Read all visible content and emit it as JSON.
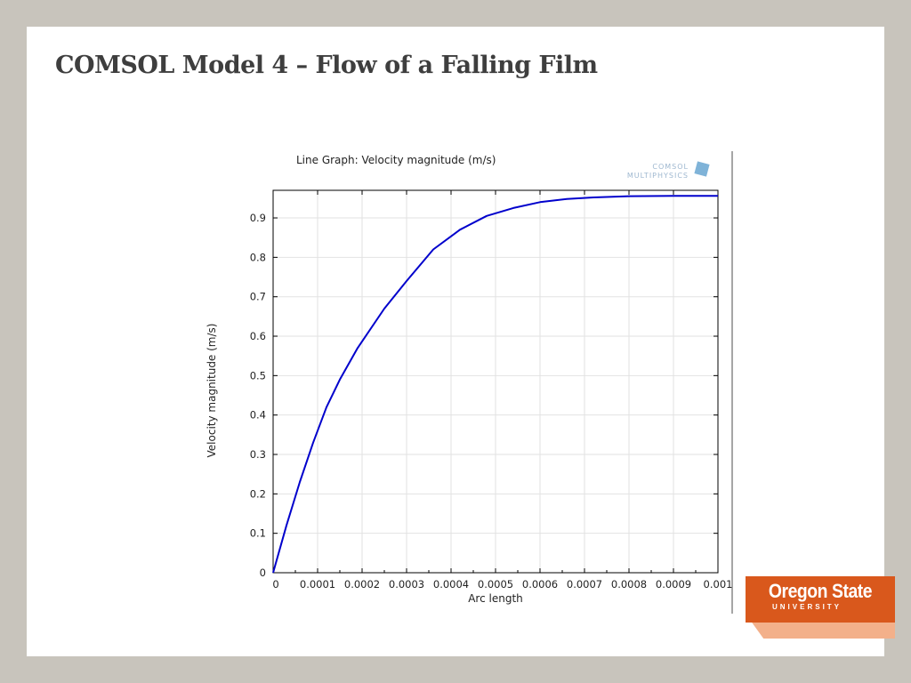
{
  "slide": {
    "title": "COMSOL Model 4 – Flow of a Falling Film"
  },
  "chart_data": {
    "type": "line",
    "title": "Line Graph: Velocity magnitude (m/s)",
    "xlabel": "Arc length",
    "ylabel": "Velocity magnitude (m/s)",
    "xlim": [
      0,
      0.001
    ],
    "ylim": [
      0,
      0.97
    ],
    "grid": true,
    "xticks": [
      0,
      0.0001,
      0.0002,
      0.0003,
      0.0004,
      0.0005,
      0.0006,
      0.0007,
      0.0008,
      0.0009,
      0.001
    ],
    "xtick_labels": [
      "0",
      "0.0001",
      "0.0002",
      "0.0003",
      "0.0004",
      "0.0005",
      "0.0006",
      "0.0007",
      "0.0008",
      "0.0009",
      "0.001"
    ],
    "yticks": [
      0,
      0.1,
      0.2,
      0.3,
      0.4,
      0.5,
      0.6,
      0.7,
      0.8,
      0.9
    ],
    "ytick_labels": [
      "0",
      "0.1",
      "0.2",
      "0.3",
      "0.4",
      "0.5",
      "0.6",
      "0.7",
      "0.8",
      "0.9"
    ],
    "series": [
      {
        "color": "#0000cc",
        "x": [
          0,
          3e-05,
          6e-05,
          9e-05,
          0.00012,
          0.00015,
          0.00019,
          0.00025,
          0.0003,
          0.00036,
          0.00042,
          0.00048,
          0.00054,
          0.0006,
          0.00066,
          0.00072,
          0.0008,
          0.0009,
          0.001
        ],
        "y": [
          0,
          0.12,
          0.23,
          0.33,
          0.42,
          0.49,
          0.57,
          0.67,
          0.74,
          0.82,
          0.87,
          0.905,
          0.925,
          0.94,
          0.948,
          0.952,
          0.955,
          0.956,
          0.956
        ]
      }
    ]
  },
  "watermark": {
    "line1": "COMSOL",
    "line2": "MULTIPHYSICS"
  },
  "logo": {
    "name": "Oregon State",
    "sub": "UNIVERSITY"
  }
}
